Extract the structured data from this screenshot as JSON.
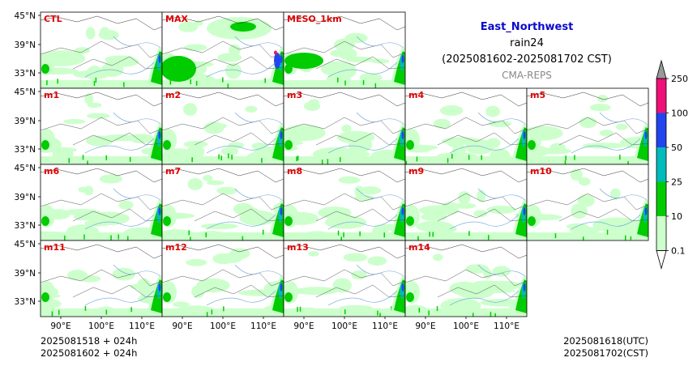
{
  "title": {
    "region": "East_Northwest",
    "variable": "rain24",
    "period": "(2025081602-2025081702 CST)",
    "source": "CMA-REPS"
  },
  "colors": {
    "region_title": "#0a0acc",
    "panel_label": "#e00000",
    "source": "#888888"
  },
  "panels": [
    {
      "label": "CTL",
      "row": 0,
      "col": 0
    },
    {
      "label": "MAX",
      "row": 0,
      "col": 1
    },
    {
      "label": "MESO_1km",
      "row": 0,
      "col": 2
    },
    {
      "label": "m1",
      "row": 1,
      "col": 0
    },
    {
      "label": "m2",
      "row": 1,
      "col": 1
    },
    {
      "label": "m3",
      "row": 1,
      "col": 2
    },
    {
      "label": "m4",
      "row": 1,
      "col": 3
    },
    {
      "label": "m5",
      "row": 1,
      "col": 4
    },
    {
      "label": "m6",
      "row": 2,
      "col": 0
    },
    {
      "label": "m7",
      "row": 2,
      "col": 1
    },
    {
      "label": "m8",
      "row": 2,
      "col": 2
    },
    {
      "label": "m9",
      "row": 2,
      "col": 3
    },
    {
      "label": "m10",
      "row": 2,
      "col": 4
    },
    {
      "label": "m11",
      "row": 3,
      "col": 0
    },
    {
      "label": "m12",
      "row": 3,
      "col": 1
    },
    {
      "label": "m13",
      "row": 3,
      "col": 2
    },
    {
      "label": "m14",
      "row": 3,
      "col": 3
    }
  ],
  "lat_ticks": {
    "row_top": "45°N",
    "mid": "39°N",
    "low": "33°N"
  },
  "lon_ticks": [
    "90°E",
    "100°E",
    "110°E"
  ],
  "colorbar": {
    "levels": [
      "0.1",
      "10",
      "25",
      "50",
      "100",
      "250"
    ],
    "colors": [
      "#ccffcc",
      "#00cc00",
      "#00bbbb",
      "#2244ee",
      "#ee1177"
    ],
    "under_color": "#ffffff",
    "over_color": "#999999"
  },
  "footer": {
    "left_line1": "2025081518  +  024h",
    "left_line2": "2025081602  +  024h",
    "right_line1": "2025081618(UTC)",
    "right_line2": "2025081702(CST)"
  }
}
